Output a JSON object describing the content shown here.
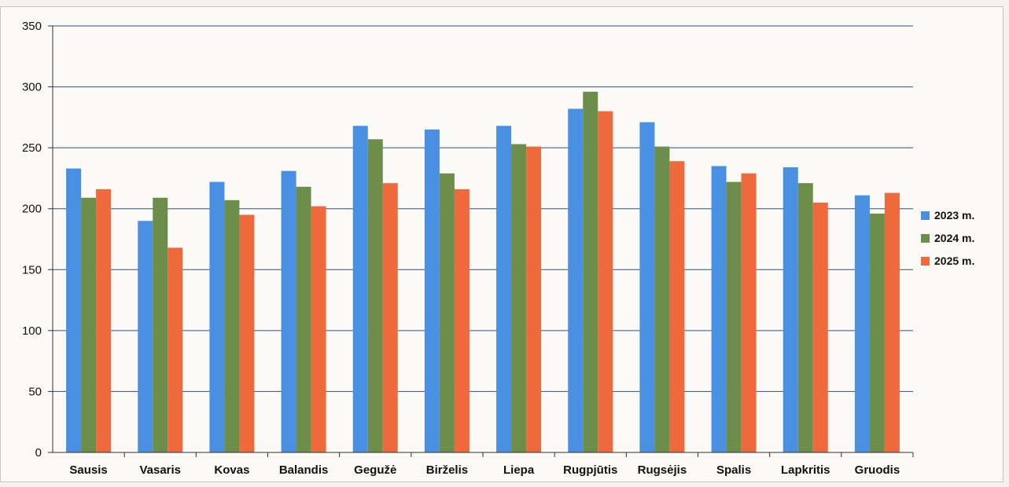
{
  "chart_data": {
    "type": "bar",
    "categories": [
      "Sausis",
      "Vasaris",
      "Kovas",
      "Balandis",
      "Gegužė",
      "Birželis",
      "Liepa",
      "Rugpjūtis",
      "Rugsėjis",
      "Spalis",
      "Lapkritis",
      "Gruodis"
    ],
    "series": [
      {
        "name": "2023 m.",
        "color": "#4a90e2",
        "values": [
          233,
          190,
          222,
          231,
          268,
          265,
          268,
          282,
          271,
          235,
          234,
          211
        ]
      },
      {
        "name": "2024 m.",
        "color": "#6d8d4a",
        "values": [
          209,
          209,
          207,
          218,
          257,
          229,
          253,
          296,
          251,
          222,
          221,
          196
        ]
      },
      {
        "name": "2025 m.",
        "color": "#ee6a3d",
        "values": [
          216,
          168,
          195,
          202,
          221,
          216,
          251,
          280,
          239,
          229,
          205,
          213
        ]
      }
    ],
    "ylim": [
      0,
      350
    ],
    "yticks": [
      0,
      50,
      100,
      150,
      200,
      250,
      300,
      350
    ],
    "grid": true,
    "legend": "right",
    "title": "",
    "xlabel": "",
    "ylabel": ""
  }
}
